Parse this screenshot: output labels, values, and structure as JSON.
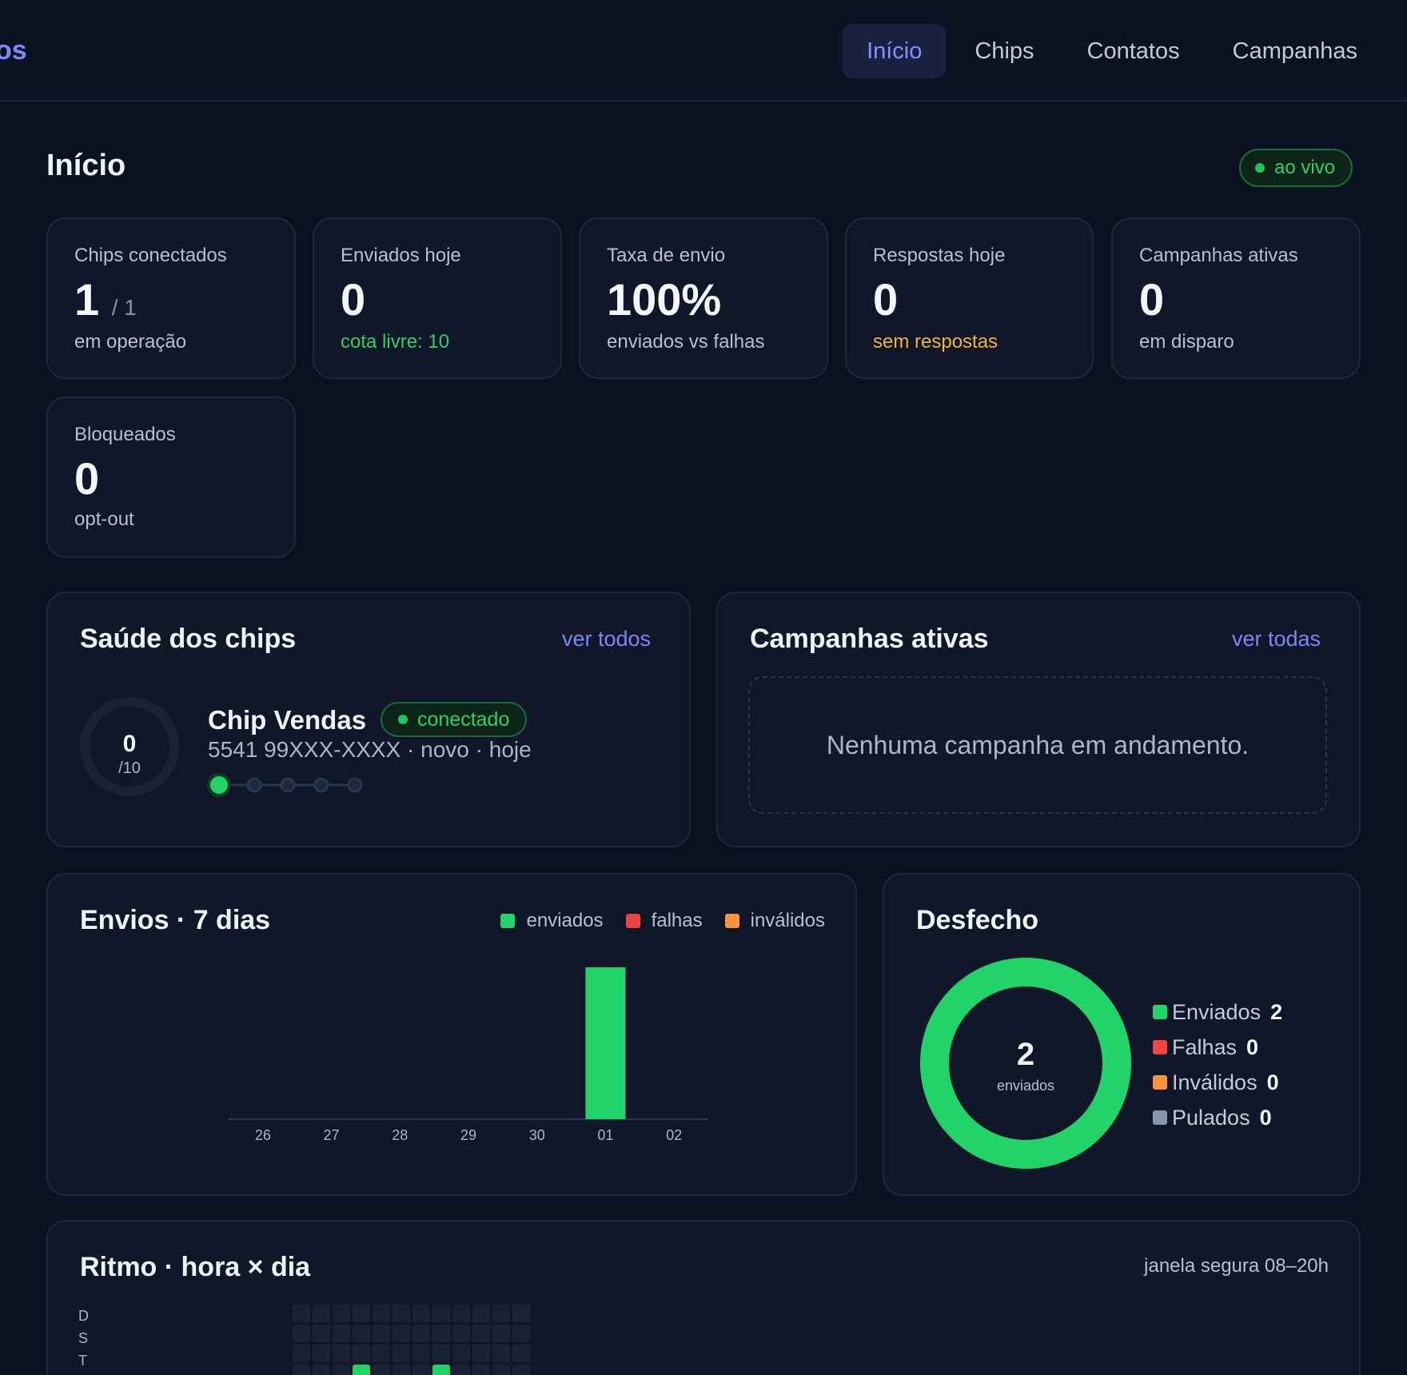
{
  "header": {
    "brand": "os",
    "nav": [
      {
        "label": "Início",
        "active": true
      },
      {
        "label": "Chips",
        "active": false
      },
      {
        "label": "Contatos",
        "active": false
      },
      {
        "label": "Campanhas",
        "active": false
      }
    ]
  },
  "page": {
    "title": "Início",
    "live_label": "ao vivo"
  },
  "stats": [
    {
      "label": "Chips conectados",
      "value": "1",
      "suffix": "/ 1",
      "sub": "em operação",
      "tone": "muted"
    },
    {
      "label": "Enviados hoje",
      "value": "0",
      "sub": "cota livre: 10",
      "tone": "green"
    },
    {
      "label": "Taxa de envio",
      "value": "100%",
      "sub": "enviados vs falhas",
      "tone": "muted"
    },
    {
      "label": "Respostas hoje",
      "value": "0",
      "sub": "sem respostas",
      "tone": "yellow"
    },
    {
      "label": "Campanhas ativas",
      "value": "0",
      "sub": "em disparo",
      "tone": "muted"
    },
    {
      "label": "Bloqueados",
      "value": "0",
      "sub": "opt-out",
      "tone": "muted"
    }
  ],
  "chips_health": {
    "title": "Saúde dos chips",
    "link": "ver todos",
    "chip": {
      "ring_value": "0",
      "ring_max": "/10",
      "ring_fraction": 0,
      "name": "Chip Vendas",
      "status": "conectado",
      "meta": "5541 99XXX-XXXX · novo · hoje",
      "warmup_step": 1,
      "warmup_steps": 5
    }
  },
  "active_campaigns": {
    "title": "Campanhas ativas",
    "link": "ver todas",
    "empty": "Nenhuma campanha em andamento."
  },
  "sends_chart": {
    "title": "Envios · 7 dias",
    "legend": [
      "enviados",
      "falhas",
      "inválidos"
    ]
  },
  "chart_data": [
    {
      "type": "bar",
      "title": "Envios · 7 dias",
      "categories": [
        "26",
        "27",
        "28",
        "29",
        "30",
        "01",
        "02"
      ],
      "series": [
        {
          "name": "enviados",
          "values": [
            0,
            0,
            0,
            0,
            0,
            2,
            0
          ]
        },
        {
          "name": "falhas",
          "values": [
            0,
            0,
            0,
            0,
            0,
            0,
            0
          ]
        },
        {
          "name": "inválidos",
          "values": [
            0,
            0,
            0,
            0,
            0,
            0,
            0
          ]
        }
      ],
      "ylim": [
        0,
        2
      ],
      "legend": "top-right"
    },
    {
      "type": "pie",
      "title": "Desfecho",
      "categories": [
        "Enviados",
        "Falhas",
        "Inválidos",
        "Pulados"
      ],
      "values": [
        2,
        0,
        0,
        0
      ]
    }
  ],
  "outcome": {
    "title": "Desfecho",
    "center_value": "2",
    "center_label": "enviados",
    "items": [
      {
        "label": "Enviados",
        "value": "2"
      },
      {
        "label": "Falhas",
        "value": "0"
      },
      {
        "label": "Inválidos",
        "value": "0"
      },
      {
        "label": "Pulados",
        "value": "0"
      }
    ]
  },
  "rhythm": {
    "title": "Ritmo · hora × dia",
    "note": "janela segura 08–20h",
    "days": [
      "D",
      "S",
      "T"
    ]
  },
  "colors": {
    "enviados": "#22d369",
    "falhas": "#ef4444",
    "invalidos": "#fb923c",
    "pulados": "#8b95aa",
    "accent": "#8186f5"
  }
}
